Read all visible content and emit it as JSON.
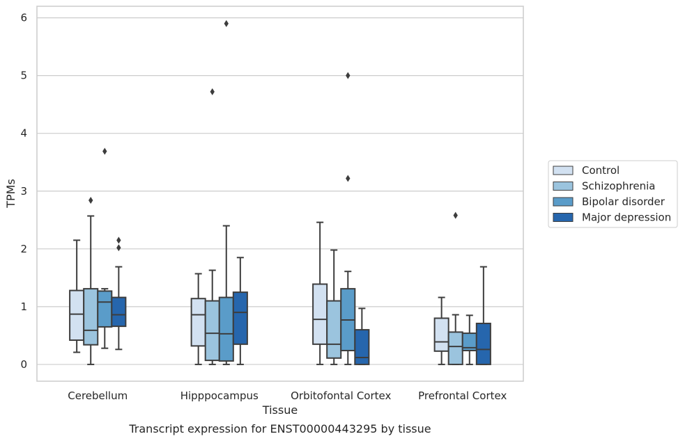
{
  "chart_data": {
    "type": "box",
    "caption": "Transcript expression for ENST00000443295 by tissue",
    "xlabel": "Tissue",
    "ylabel": "TPMs",
    "ylim": [
      -0.29,
      6.2
    ],
    "yticks": [
      0,
      1,
      2,
      3,
      4,
      5,
      6
    ],
    "grid": "horizontal",
    "legend_position": "right",
    "categories": [
      "Cerebellum",
      "Hipppocampus",
      "Orbitofontal Cortex",
      "Prefrontal Cortex"
    ],
    "series": [
      {
        "name": "Control",
        "color": "#d2e1f1",
        "boxes": [
          {
            "whislo": 0.21,
            "q1": 0.42,
            "med": 0.87,
            "q3": 1.28,
            "whishi": 2.15,
            "fliers": []
          },
          {
            "whislo": 0.0,
            "q1": 0.32,
            "med": 0.86,
            "q3": 1.14,
            "whishi": 1.57,
            "fliers": []
          },
          {
            "whislo": 0.0,
            "q1": 0.35,
            "med": 0.78,
            "q3": 1.39,
            "whishi": 2.46,
            "fliers": []
          },
          {
            "whislo": 0.0,
            "q1": 0.23,
            "med": 0.39,
            "q3": 0.8,
            "whishi": 1.16,
            "fliers": []
          }
        ]
      },
      {
        "name": "Schizophrenia",
        "color": "#9bc4de",
        "boxes": [
          {
            "whislo": 0.0,
            "q1": 0.34,
            "med": 0.59,
            "q3": 1.31,
            "whishi": 2.57,
            "fliers": [
              2.84
            ]
          },
          {
            "whislo": 0.0,
            "q1": 0.07,
            "med": 0.54,
            "q3": 1.1,
            "whishi": 1.63,
            "fliers": [
              4.72
            ]
          },
          {
            "whislo": 0.0,
            "q1": 0.11,
            "med": 0.35,
            "q3": 1.1,
            "whishi": 1.98,
            "fliers": []
          },
          {
            "whislo": 0.0,
            "q1": 0.0,
            "med": 0.31,
            "q3": 0.56,
            "whishi": 0.86,
            "fliers": [
              2.58
            ]
          }
        ]
      },
      {
        "name": "Bipolar disorder",
        "color": "#5a9cc9",
        "boxes": [
          {
            "whislo": 0.28,
            "q1": 0.65,
            "med": 1.08,
            "q3": 1.27,
            "whishi": 1.31,
            "fliers": [
              3.69
            ]
          },
          {
            "whislo": 0.0,
            "q1": 0.06,
            "med": 0.53,
            "q3": 1.16,
            "whishi": 2.4,
            "fliers": [
              5.9
            ]
          },
          {
            "whislo": 0.0,
            "q1": 0.24,
            "med": 0.77,
            "q3": 1.31,
            "whishi": 1.61,
            "fliers": [
              3.22,
              5.0
            ]
          },
          {
            "whislo": 0.0,
            "q1": 0.24,
            "med": 0.29,
            "q3": 0.54,
            "whishi": 0.85,
            "fliers": []
          }
        ]
      },
      {
        "name": "Major depression",
        "color": "#2666ad",
        "boxes": [
          {
            "whislo": 0.26,
            "q1": 0.66,
            "med": 0.86,
            "q3": 1.16,
            "whishi": 1.69,
            "fliers": [
              2.02,
              2.15
            ]
          },
          {
            "whislo": 0.0,
            "q1": 0.35,
            "med": 0.9,
            "q3": 1.25,
            "whishi": 1.85,
            "fliers": []
          },
          {
            "whislo": 0.0,
            "q1": 0.0,
            "med": 0.12,
            "q3": 0.6,
            "whishi": 0.97,
            "fliers": []
          },
          {
            "whislo": 0.0,
            "q1": 0.0,
            "med": 0.26,
            "q3": 0.71,
            "whishi": 1.69,
            "fliers": []
          }
        ]
      }
    ]
  }
}
